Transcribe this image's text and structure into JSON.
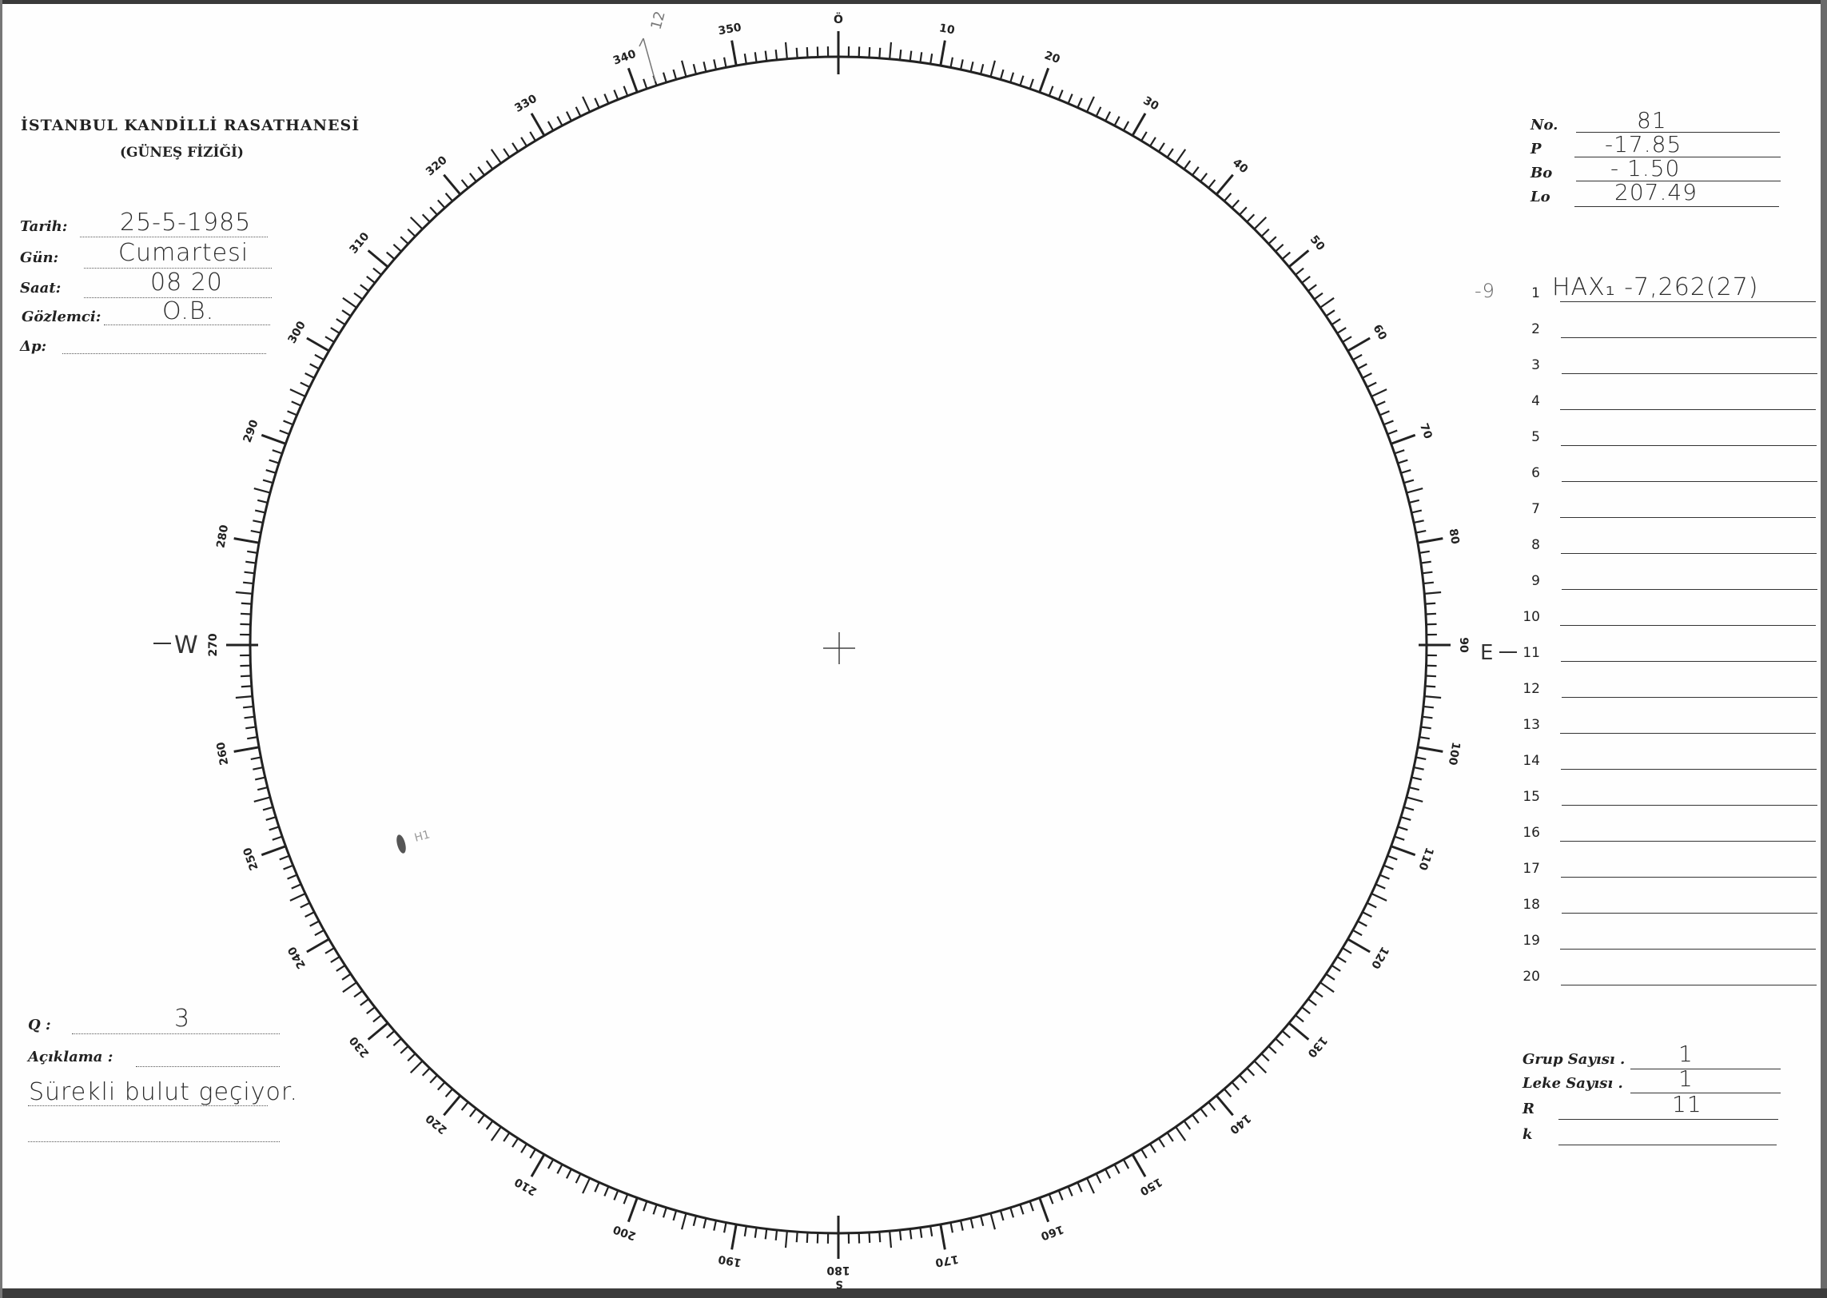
{
  "header": {
    "title": "İSTANBUL KANDİLLİ RASATHANESİ",
    "subtitle": "(GÜNEŞ FİZİĞİ)"
  },
  "observation": {
    "tarih": {
      "label": "Tarih:",
      "value": "25-5-1985"
    },
    "gun": {
      "label": "Gün:",
      "value": "Cumartesi"
    },
    "saat": {
      "label": "Saat:",
      "value": "08 20"
    },
    "gozlemci": {
      "label": "Gözlemci:",
      "value": "O.B."
    },
    "delta_p": {
      "label": "Δp:",
      "value": ""
    }
  },
  "parameters": {
    "no": {
      "label": "No.",
      "value": "81"
    },
    "p": {
      "label": "P",
      "value": "-17.85"
    },
    "bo": {
      "label": "Bo",
      "value": "- 1.50"
    },
    "lo": {
      "label": "Lo",
      "value": "207.49"
    }
  },
  "groups": {
    "margin_note": "-9",
    "rows": [
      {
        "n": "1",
        "entry": "HAX₁ -7,262(27)"
      },
      {
        "n": "2",
        "entry": ""
      },
      {
        "n": "3",
        "entry": ""
      },
      {
        "n": "4",
        "entry": ""
      },
      {
        "n": "5",
        "entry": ""
      },
      {
        "n": "6",
        "entry": ""
      },
      {
        "n": "7",
        "entry": ""
      },
      {
        "n": "8",
        "entry": ""
      },
      {
        "n": "9",
        "entry": ""
      },
      {
        "n": "10",
        "entry": ""
      },
      {
        "n": "11",
        "entry": ""
      },
      {
        "n": "12",
        "entry": ""
      },
      {
        "n": "13",
        "entry": ""
      },
      {
        "n": "14",
        "entry": ""
      },
      {
        "n": "15",
        "entry": ""
      },
      {
        "n": "16",
        "entry": ""
      },
      {
        "n": "17",
        "entry": ""
      },
      {
        "n": "18",
        "entry": ""
      },
      {
        "n": "19",
        "entry": ""
      },
      {
        "n": "20",
        "entry": ""
      }
    ]
  },
  "summary": {
    "grup": {
      "label": "Grup Sayısı .",
      "value": "1"
    },
    "leke": {
      "label": "Leke Sayısı .",
      "value": "1"
    },
    "r": {
      "label": "R",
      "value": "11"
    },
    "k": {
      "label": "k",
      "value": ""
    }
  },
  "quality": {
    "label": "Q :",
    "value": "3"
  },
  "remarks": {
    "label": "Açıklama :",
    "value": "Sürekli bulut geçiyor."
  },
  "dial": {
    "labels": [
      "Ö",
      "10",
      "20",
      "30",
      "40",
      "50",
      "60",
      "70",
      "80",
      "90",
      "100",
      "110",
      "120",
      "130",
      "140",
      "150",
      "160",
      "170",
      "180",
      "190",
      "200",
      "210",
      "220",
      "230",
      "240",
      "250",
      "260",
      "270",
      "280",
      "290",
      "300",
      "310",
      "320",
      "330",
      "340",
      "350"
    ],
    "west": "W",
    "east": "E",
    "south": "S",
    "position_angle_mark": "12",
    "sunspot_label": "H1"
  }
}
